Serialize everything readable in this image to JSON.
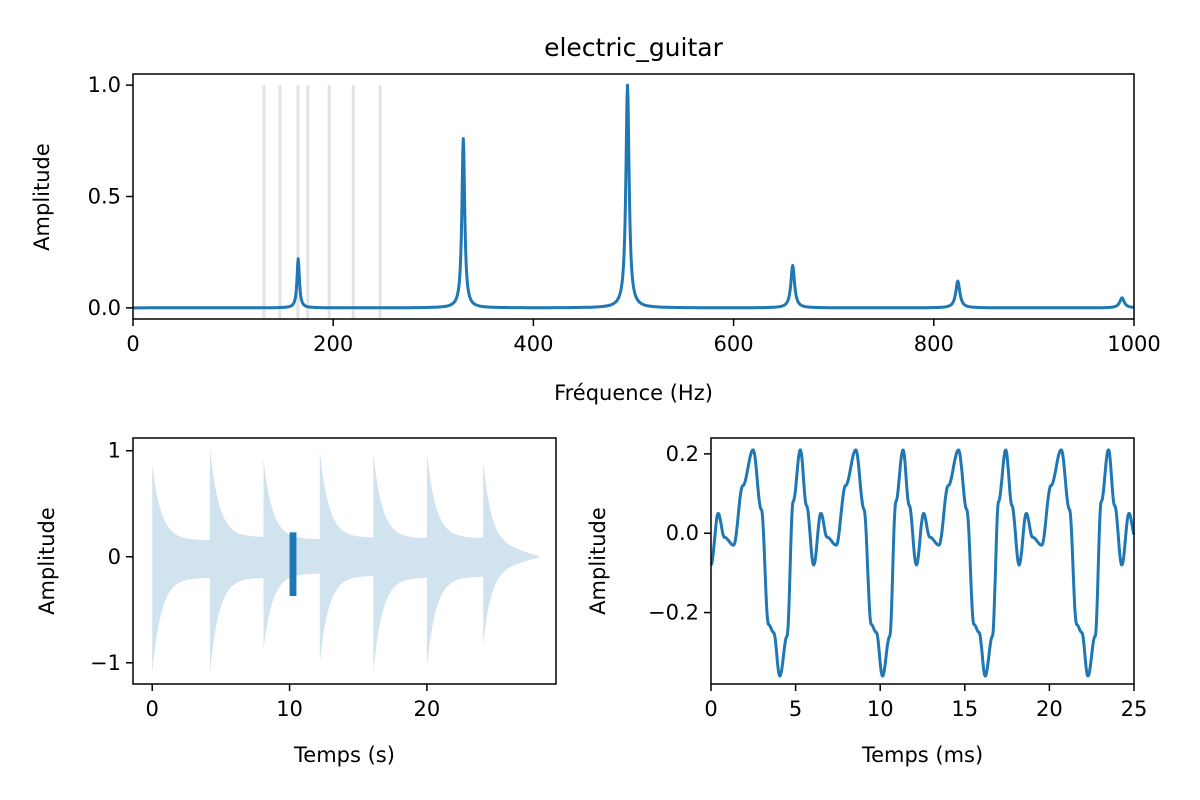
{
  "chart_data": [
    {
      "panel": "spectrum",
      "type": "line",
      "title": "electric_guitar",
      "xlabel": "Fréquence (Hz)",
      "ylabel": "Amplitude",
      "xlim": [
        0,
        1000
      ],
      "ylim": [
        -0.05,
        1.05
      ],
      "xticks": [
        0,
        200,
        400,
        600,
        800,
        1000
      ],
      "xtick_labels": [
        "0",
        "200",
        "400",
        "600",
        "800",
        "1000"
      ],
      "yticks": [
        0.0,
        0.5,
        1.0
      ],
      "ytick_labels": [
        "0.0",
        "0.5",
        "1.0"
      ],
      "reference_lines_x": [
        130.8,
        146.8,
        164.8,
        174.6,
        196.0,
        220.0,
        246.9
      ],
      "reference_color": "#e3e3e3",
      "color": "#1f77b4",
      "peaks": [
        {
          "x": 165,
          "y": 0.22
        },
        {
          "x": 330,
          "y": 0.76
        },
        {
          "x": 494,
          "y": 1.0
        },
        {
          "x": 659,
          "y": 0.19
        },
        {
          "x": 824,
          "y": 0.12
        },
        {
          "x": 988,
          "y": 0.045
        }
      ],
      "grid": false
    },
    {
      "panel": "waveform",
      "type": "area",
      "xlabel": "Temps (s)",
      "ylabel": "Amplitude",
      "xlim": [
        -1.4,
        29.4
      ],
      "ylim": [
        -1.2,
        1.12
      ],
      "xticks": [
        0,
        10,
        20
      ],
      "xtick_labels": [
        "0",
        "10",
        "20"
      ],
      "yticks": [
        -1,
        0,
        1
      ],
      "ytick_labels": [
        "−1",
        "0",
        "1"
      ],
      "note_onsets": [
        0,
        4.2,
        8.1,
        12.2,
        16.1,
        20.0,
        24.1
      ],
      "note_peaks_pos": [
        0.87,
        1.03,
        0.92,
        1.0,
        0.97,
        0.98,
        0.91
      ],
      "note_peaks_neg": [
        -1.1,
        -1.1,
        -0.88,
        -1.0,
        -1.09,
        -1.04,
        -0.83
      ],
      "envelope_color": "#d2e3f0",
      "highlight": {
        "x": [
          10.0,
          10.5
        ],
        "y": [
          -0.37,
          0.23
        ]
      },
      "grid": false
    },
    {
      "panel": "zoom",
      "type": "line",
      "xlabel": "Temps (ms)",
      "ylabel": "Amplitude",
      "xlim": [
        0,
        25
      ],
      "ylim": [
        -0.38,
        0.24
      ],
      "xticks": [
        0,
        5,
        10,
        15,
        20,
        25
      ],
      "xtick_labels": [
        "0",
        "5",
        "10",
        "15",
        "20",
        "25"
      ],
      "yticks": [
        0.2,
        0.0,
        -0.2
      ],
      "ytick_labels": [
        "0.2",
        "0.0",
        "−0.2"
      ],
      "color": "#1f77b4",
      "period_ms": 6.07,
      "grid": false
    }
  ]
}
